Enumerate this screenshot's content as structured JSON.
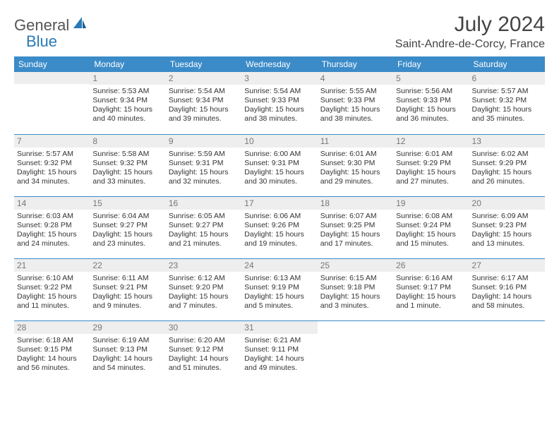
{
  "brand": {
    "part1": "General",
    "part2": "Blue"
  },
  "title": "July 2024",
  "location": "Saint-Andre-de-Corcy, France",
  "colors": {
    "header_bg": "#3b8bc8",
    "header_text": "#ffffff",
    "daynum_bg": "#eeeeee",
    "daynum_text": "#777777",
    "body_text": "#333333",
    "rule": "#3b8bc8",
    "logo_accent": "#2a7ab8"
  },
  "weekdays": [
    "Sunday",
    "Monday",
    "Tuesday",
    "Wednesday",
    "Thursday",
    "Friday",
    "Saturday"
  ],
  "weeks": [
    [
      {
        "day": "",
        "sunrise": "",
        "sunset": "",
        "daylight": ""
      },
      {
        "day": "1",
        "sunrise": "Sunrise: 5:53 AM",
        "sunset": "Sunset: 9:34 PM",
        "daylight": "Daylight: 15 hours and 40 minutes."
      },
      {
        "day": "2",
        "sunrise": "Sunrise: 5:54 AM",
        "sunset": "Sunset: 9:34 PM",
        "daylight": "Daylight: 15 hours and 39 minutes."
      },
      {
        "day": "3",
        "sunrise": "Sunrise: 5:54 AM",
        "sunset": "Sunset: 9:33 PM",
        "daylight": "Daylight: 15 hours and 38 minutes."
      },
      {
        "day": "4",
        "sunrise": "Sunrise: 5:55 AM",
        "sunset": "Sunset: 9:33 PM",
        "daylight": "Daylight: 15 hours and 38 minutes."
      },
      {
        "day": "5",
        "sunrise": "Sunrise: 5:56 AM",
        "sunset": "Sunset: 9:33 PM",
        "daylight": "Daylight: 15 hours and 36 minutes."
      },
      {
        "day": "6",
        "sunrise": "Sunrise: 5:57 AM",
        "sunset": "Sunset: 9:32 PM",
        "daylight": "Daylight: 15 hours and 35 minutes."
      }
    ],
    [
      {
        "day": "7",
        "sunrise": "Sunrise: 5:57 AM",
        "sunset": "Sunset: 9:32 PM",
        "daylight": "Daylight: 15 hours and 34 minutes."
      },
      {
        "day": "8",
        "sunrise": "Sunrise: 5:58 AM",
        "sunset": "Sunset: 9:32 PM",
        "daylight": "Daylight: 15 hours and 33 minutes."
      },
      {
        "day": "9",
        "sunrise": "Sunrise: 5:59 AM",
        "sunset": "Sunset: 9:31 PM",
        "daylight": "Daylight: 15 hours and 32 minutes."
      },
      {
        "day": "10",
        "sunrise": "Sunrise: 6:00 AM",
        "sunset": "Sunset: 9:31 PM",
        "daylight": "Daylight: 15 hours and 30 minutes."
      },
      {
        "day": "11",
        "sunrise": "Sunrise: 6:01 AM",
        "sunset": "Sunset: 9:30 PM",
        "daylight": "Daylight: 15 hours and 29 minutes."
      },
      {
        "day": "12",
        "sunrise": "Sunrise: 6:01 AM",
        "sunset": "Sunset: 9:29 PM",
        "daylight": "Daylight: 15 hours and 27 minutes."
      },
      {
        "day": "13",
        "sunrise": "Sunrise: 6:02 AM",
        "sunset": "Sunset: 9:29 PM",
        "daylight": "Daylight: 15 hours and 26 minutes."
      }
    ],
    [
      {
        "day": "14",
        "sunrise": "Sunrise: 6:03 AM",
        "sunset": "Sunset: 9:28 PM",
        "daylight": "Daylight: 15 hours and 24 minutes."
      },
      {
        "day": "15",
        "sunrise": "Sunrise: 6:04 AM",
        "sunset": "Sunset: 9:27 PM",
        "daylight": "Daylight: 15 hours and 23 minutes."
      },
      {
        "day": "16",
        "sunrise": "Sunrise: 6:05 AM",
        "sunset": "Sunset: 9:27 PM",
        "daylight": "Daylight: 15 hours and 21 minutes."
      },
      {
        "day": "17",
        "sunrise": "Sunrise: 6:06 AM",
        "sunset": "Sunset: 9:26 PM",
        "daylight": "Daylight: 15 hours and 19 minutes."
      },
      {
        "day": "18",
        "sunrise": "Sunrise: 6:07 AM",
        "sunset": "Sunset: 9:25 PM",
        "daylight": "Daylight: 15 hours and 17 minutes."
      },
      {
        "day": "19",
        "sunrise": "Sunrise: 6:08 AM",
        "sunset": "Sunset: 9:24 PM",
        "daylight": "Daylight: 15 hours and 15 minutes."
      },
      {
        "day": "20",
        "sunrise": "Sunrise: 6:09 AM",
        "sunset": "Sunset: 9:23 PM",
        "daylight": "Daylight: 15 hours and 13 minutes."
      }
    ],
    [
      {
        "day": "21",
        "sunrise": "Sunrise: 6:10 AM",
        "sunset": "Sunset: 9:22 PM",
        "daylight": "Daylight: 15 hours and 11 minutes."
      },
      {
        "day": "22",
        "sunrise": "Sunrise: 6:11 AM",
        "sunset": "Sunset: 9:21 PM",
        "daylight": "Daylight: 15 hours and 9 minutes."
      },
      {
        "day": "23",
        "sunrise": "Sunrise: 6:12 AM",
        "sunset": "Sunset: 9:20 PM",
        "daylight": "Daylight: 15 hours and 7 minutes."
      },
      {
        "day": "24",
        "sunrise": "Sunrise: 6:13 AM",
        "sunset": "Sunset: 9:19 PM",
        "daylight": "Daylight: 15 hours and 5 minutes."
      },
      {
        "day": "25",
        "sunrise": "Sunrise: 6:15 AM",
        "sunset": "Sunset: 9:18 PM",
        "daylight": "Daylight: 15 hours and 3 minutes."
      },
      {
        "day": "26",
        "sunrise": "Sunrise: 6:16 AM",
        "sunset": "Sunset: 9:17 PM",
        "daylight": "Daylight: 15 hours and 1 minute."
      },
      {
        "day": "27",
        "sunrise": "Sunrise: 6:17 AM",
        "sunset": "Sunset: 9:16 PM",
        "daylight": "Daylight: 14 hours and 58 minutes."
      }
    ],
    [
      {
        "day": "28",
        "sunrise": "Sunrise: 6:18 AM",
        "sunset": "Sunset: 9:15 PM",
        "daylight": "Daylight: 14 hours and 56 minutes."
      },
      {
        "day": "29",
        "sunrise": "Sunrise: 6:19 AM",
        "sunset": "Sunset: 9:13 PM",
        "daylight": "Daylight: 14 hours and 54 minutes."
      },
      {
        "day": "30",
        "sunrise": "Sunrise: 6:20 AM",
        "sunset": "Sunset: 9:12 PM",
        "daylight": "Daylight: 14 hours and 51 minutes."
      },
      {
        "day": "31",
        "sunrise": "Sunrise: 6:21 AM",
        "sunset": "Sunset: 9:11 PM",
        "daylight": "Daylight: 14 hours and 49 minutes."
      },
      {
        "day": "",
        "sunrise": "",
        "sunset": "",
        "daylight": ""
      },
      {
        "day": "",
        "sunrise": "",
        "sunset": "",
        "daylight": ""
      },
      {
        "day": "",
        "sunrise": "",
        "sunset": "",
        "daylight": ""
      }
    ]
  ]
}
